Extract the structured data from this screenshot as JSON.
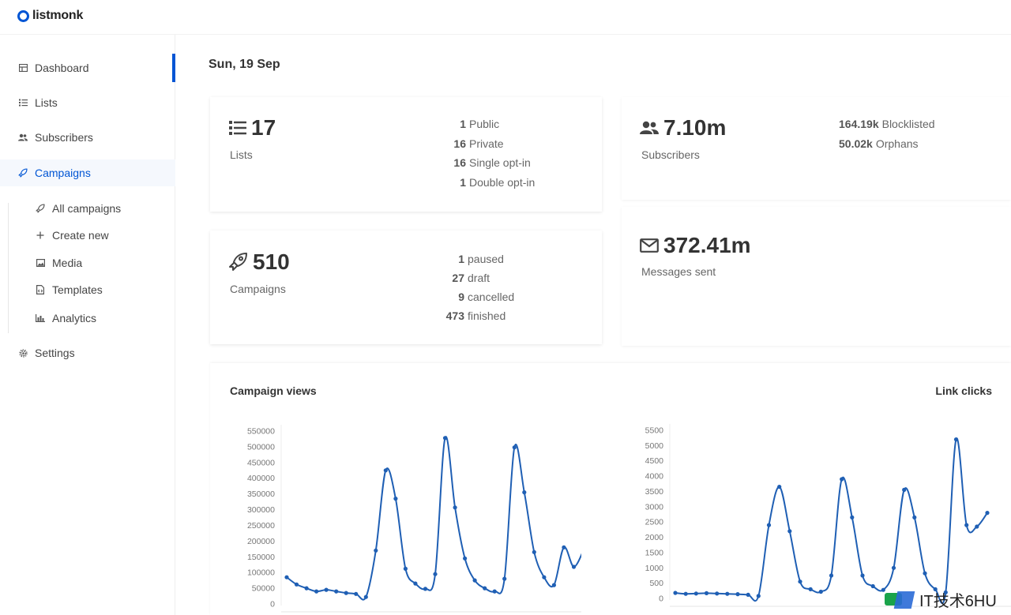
{
  "app": {
    "name": "listmonk"
  },
  "sidebar": {
    "items": [
      {
        "label": "Dashboard",
        "icon": "dashboard-icon"
      },
      {
        "label": "Lists",
        "icon": "list-icon"
      },
      {
        "label": "Subscribers",
        "icon": "users-icon"
      },
      {
        "label": "Campaigns",
        "icon": "rocket-icon"
      },
      {
        "label": "Settings",
        "icon": "gear-icon"
      }
    ],
    "campaigns_sub": [
      {
        "label": "All campaigns",
        "icon": "rocket-icon"
      },
      {
        "label": "Create new",
        "icon": "plus-icon"
      },
      {
        "label": "Media",
        "icon": "image-icon"
      },
      {
        "label": "Templates",
        "icon": "file-code-icon"
      },
      {
        "label": "Analytics",
        "icon": "bar-chart-icon"
      }
    ]
  },
  "main": {
    "date": "Sun, 19 Sep",
    "lists": {
      "value": "17",
      "label": "Lists",
      "stats": [
        {
          "n": "1",
          "l": "Public"
        },
        {
          "n": "16",
          "l": "Private"
        },
        {
          "n": "16",
          "l": "Single opt-in"
        },
        {
          "n": "1",
          "l": "Double opt-in"
        }
      ]
    },
    "subscribers": {
      "value": "7.10m",
      "label": "Subscribers",
      "stats": [
        {
          "n": "164.19k",
          "l": "Blocklisted"
        },
        {
          "n": "50.02k",
          "l": "Orphans"
        }
      ]
    },
    "campaigns": {
      "value": "510",
      "label": "Campaigns",
      "stats": [
        {
          "n": "1",
          "l": "paused"
        },
        {
          "n": "27",
          "l": "draft"
        },
        {
          "n": "9",
          "l": "cancelled"
        },
        {
          "n": "473",
          "l": "finished"
        }
      ]
    },
    "messages": {
      "value": "372.41m",
      "label": "Messages sent"
    }
  },
  "chart_data": [
    {
      "type": "line",
      "title": "Campaign views",
      "ylim": [
        0,
        550000
      ],
      "yticks": [
        0,
        50000,
        100000,
        150000,
        200000,
        250000,
        300000,
        350000,
        400000,
        450000,
        500000,
        550000
      ],
      "series": [
        {
          "values": [
            85000,
            62000,
            50000,
            40000,
            45000,
            40000,
            35000,
            32000,
            22000,
            170000,
            425000,
            335000,
            112000,
            65000,
            48000,
            95000,
            528000,
            307000,
            145000,
            75000,
            50000,
            40000,
            80000,
            498000,
            355000,
            165000,
            85000,
            60000,
            180000,
            118000,
            172000
          ]
        }
      ],
      "color": "#1f5fb4"
    },
    {
      "type": "line",
      "title": "Link clicks",
      "ylim": [
        0,
        5500
      ],
      "yticks": [
        0,
        500,
        1000,
        1500,
        2000,
        2500,
        3000,
        3500,
        4000,
        4500,
        5000,
        5500
      ],
      "series": [
        {
          "values": [
            180,
            150,
            160,
            170,
            160,
            150,
            140,
            120,
            80,
            2400,
            3650,
            2200,
            550,
            300,
            220,
            750,
            3900,
            2650,
            750,
            400,
            280,
            1000,
            3550,
            2650,
            820,
            300,
            200,
            5200,
            2400,
            2350,
            2800
          ]
        }
      ],
      "color": "#1f5fb4"
    }
  ],
  "watermark": {
    "text": "IT技术6HU"
  }
}
